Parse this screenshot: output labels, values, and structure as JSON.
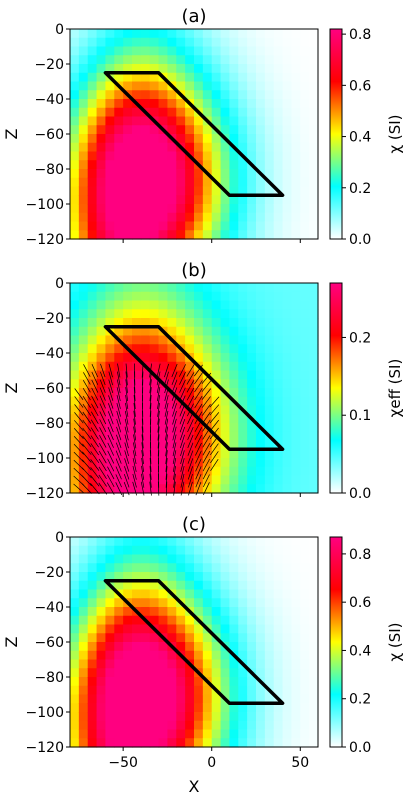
{
  "figure": {
    "panels": [
      {
        "id": "a",
        "title": "(a)",
        "ylabel": "Z",
        "cbar_label": "χ (SI)",
        "cbar_ticks": [
          "0.0",
          "0.2",
          "0.4",
          "0.6",
          "0.8"
        ],
        "cmax": 0.82,
        "has_vectors": false
      },
      {
        "id": "b",
        "title": "(b)",
        "ylabel": "Z",
        "cbar_label": "χeff (SI)",
        "cbar_ticks": [
          "0.0",
          "0.1",
          "0.2"
        ],
        "cmax": 0.27,
        "has_vectors": true
      },
      {
        "id": "c",
        "title": "(c)",
        "ylabel": "Z",
        "cbar_label": "χ (SI)",
        "cbar_ticks": [
          "0.0",
          "0.2",
          "0.4",
          "0.6",
          "0.8"
        ],
        "cmax": 0.87,
        "has_vectors": false
      }
    ],
    "xlabel": "X",
    "xticks": [
      "−50",
      "0",
      "50"
    ],
    "yticks": [
      "0",
      "−20",
      "−40",
      "−60",
      "−80",
      "−100",
      "−120"
    ]
  },
  "chart_data": [
    {
      "type": "heatmap",
      "title": "(a)",
      "xlabel": "",
      "ylabel": "Z",
      "xlim": [
        -80,
        60
      ],
      "ylim": [
        -120,
        0
      ],
      "colorbar": {
        "label": "χ (SI)",
        "range": [
          0,
          0.82
        ],
        "ticks": [
          0,
          0.2,
          0.4,
          0.6,
          0.8
        ]
      },
      "anomaly_peak": {
        "x": -35,
        "z": -85,
        "value": 0.82
      },
      "outline": [
        [
          -60,
          -25
        ],
        [
          -30,
          -25
        ],
        [
          40,
          -95
        ],
        [
          10,
          -95
        ]
      ]
    },
    {
      "type": "heatmap",
      "title": "(b)",
      "xlabel": "",
      "ylabel": "Z",
      "xlim": [
        -80,
        60
      ],
      "ylim": [
        -120,
        0
      ],
      "colorbar": {
        "label": "χeff (SI)",
        "range": [
          0,
          0.27
        ],
        "ticks": [
          0,
          0.1,
          0.2
        ]
      },
      "anomaly_peak": {
        "x": -35,
        "z": -85,
        "value": 0.27
      },
      "outline": [
        [
          -60,
          -25
        ],
        [
          -30,
          -25
        ],
        [
          40,
          -95
        ],
        [
          10,
          -95
        ]
      ],
      "vector_field": "magnetization directions over anomaly"
    },
    {
      "type": "heatmap",
      "title": "(c)",
      "xlabel": "X",
      "ylabel": "Z",
      "xlim": [
        -80,
        60
      ],
      "ylim": [
        -120,
        0
      ],
      "colorbar": {
        "label": "χ (SI)",
        "range": [
          0,
          0.87
        ],
        "ticks": [
          0,
          0.2,
          0.4,
          0.6,
          0.8
        ]
      },
      "anomaly_peak": {
        "x": -35,
        "z": -90,
        "value": 0.87
      },
      "outline": [
        [
          -60,
          -25
        ],
        [
          -30,
          -25
        ],
        [
          40,
          -95
        ],
        [
          10,
          -95
        ]
      ]
    }
  ]
}
